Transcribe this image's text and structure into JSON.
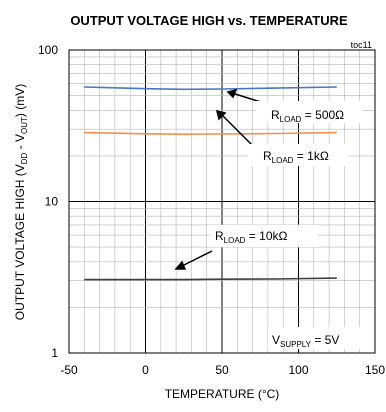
{
  "chart_data": {
    "type": "line",
    "title": "OUTPUT VOLTAGE HIGH vs. TEMPERATURE",
    "figure_id": "toc11",
    "xlabel": "TEMPERATURE (°C)",
    "ylabel": {
      "base": "OUTPUT VOLTAGE HIGH (V",
      "sub1": "DD",
      "mid": " - V",
      "sub2": "OUT",
      "end": ") (mV)"
    },
    "x_ticks": [
      -50,
      0,
      50,
      100,
      150
    ],
    "y_ticks": [
      1,
      10,
      100
    ],
    "xlim": [
      -50,
      150
    ],
    "ylim": [
      1,
      100
    ],
    "y_scale": "log",
    "grid": true,
    "series": [
      {
        "label": {
          "main": "R",
          "sub": "LOAD",
          "rest": " = 500Ω"
        },
        "color": "#4a78c0",
        "x": [
          -40,
          0,
          25,
          50,
          85,
          125
        ],
        "values": [
          57,
          55.5,
          55,
          55.3,
          56,
          57
        ]
      },
      {
        "label": {
          "main": "R",
          "sub": "LOAD",
          "rest": " = 1kΩ"
        },
        "color": "#f09050",
        "x": [
          -40,
          0,
          25,
          50,
          85,
          125
        ],
        "values": [
          28.5,
          28,
          27.8,
          27.9,
          28.1,
          28.5
        ]
      },
      {
        "label": {
          "main": "R",
          "sub": "LOAD",
          "rest": " = 10kΩ"
        },
        "color": "#404040",
        "x": [
          -40,
          0,
          25,
          50,
          85,
          125
        ],
        "values": [
          3.05,
          3.05,
          3.05,
          3.07,
          3.08,
          3.12
        ]
      }
    ],
    "annotation": {
      "main": "V",
      "sub": "SUPPLY",
      "rest": " = 5V"
    }
  }
}
